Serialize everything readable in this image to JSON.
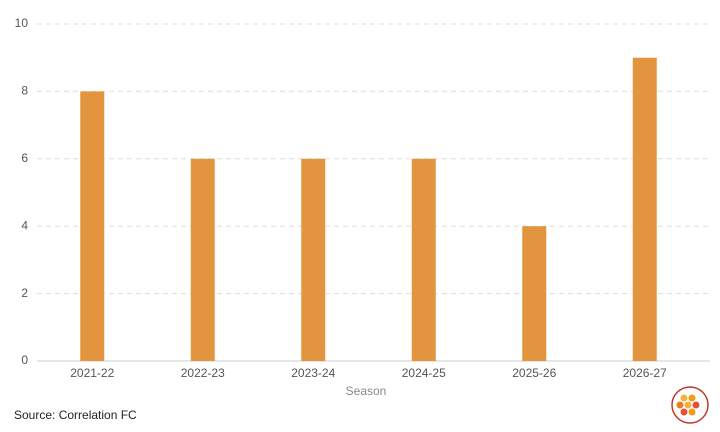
{
  "chart_data": {
    "type": "bar",
    "categories": [
      "2021-22",
      "2022-23",
      "2023-24",
      "2024-25",
      "2025-26",
      "2026-27"
    ],
    "values": [
      8,
      6,
      6,
      6,
      4,
      9
    ],
    "color": "#e2953e",
    "ylim": [
      0,
      10
    ],
    "yticks": [
      0,
      2,
      4,
      6,
      8,
      10
    ],
    "grid": true,
    "x_label": "Season",
    "source": "Source: Correlation FC"
  }
}
